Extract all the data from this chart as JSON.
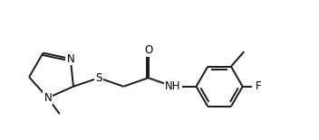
{
  "bg_color": "#ffffff",
  "line_color": "#1a1a1a",
  "line_width": 1.4,
  "font_size": 8.5,
  "xlim": [
    0,
    10
  ],
  "ylim": [
    0,
    4.5
  ],
  "figsize": [
    3.52,
    1.55
  ],
  "dpi": 100
}
